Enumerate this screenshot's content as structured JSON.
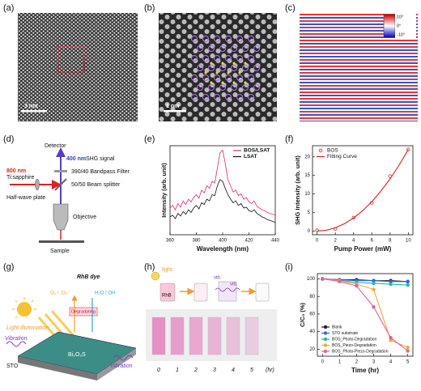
{
  "panel_labels": [
    "(a)",
    "(b)",
    "(c)",
    "(d)",
    "(e)",
    "(f)",
    "(g)",
    "(h)",
    "(i)"
  ],
  "images": {
    "a_scale": "3 nm",
    "b_scale": "1 nm",
    "c_colorbar": [
      "10°",
      "0°",
      "-10°"
    ]
  },
  "setup": {
    "detector": "Detector",
    "signal_wavelength": "400 nm",
    "signal": "SHG signal",
    "laser_wavelength": "800 nm",
    "laser": "Ti:sapphire",
    "filter": "390/40 Bandpass Filter",
    "splitter": "50/50 Beam splitter",
    "waveplate": "Half-wave plate",
    "objective": "Objective",
    "sample": "Sample"
  },
  "scheme": {
    "dye": "RhB dye",
    "light": "Light illumination",
    "reduction": "O₂ / ·O₂⁻",
    "oxidation": "H₂O / OH⁻",
    "degrading": "Degradating",
    "vibration_left": "Vibration",
    "vibration_right": "Vibration",
    "substrate": "STO",
    "film": "Bi₂O₂S"
  },
  "process": {
    "light": "light",
    "sample": "RhB",
    "vib_1": "vib.",
    "vib_2": "vib.",
    "times": [
      "0",
      "1",
      "2",
      "3",
      "4",
      "5"
    ],
    "unit": "(hr)"
  },
  "chart_data": [
    {
      "type": "line",
      "mode": "lines",
      "xlabel": "Wavelength (nm)",
      "ylabel": "Intensity (arb. unit)",
      "legend": "upper right",
      "x": [
        360,
        362,
        364,
        366,
        368,
        370,
        372,
        374,
        376,
        378,
        380,
        382,
        384,
        386,
        388,
        390,
        392,
        394,
        396,
        398,
        400,
        402,
        404,
        406,
        408,
        410,
        412,
        414,
        416,
        418,
        420,
        422,
        424,
        426,
        428,
        430,
        432,
        434,
        436,
        438,
        440
      ],
      "xlim": [
        360,
        440
      ],
      "xticks": [
        360,
        380,
        400,
        420,
        440
      ],
      "ylim": [
        0,
        1
      ],
      "series": [
        {
          "name": "BOS/LSAT",
          "color": "#e0287a",
          "values": [
            0.3,
            0.33,
            0.28,
            0.35,
            0.31,
            0.38,
            0.34,
            0.4,
            0.37,
            0.42,
            0.45,
            0.41,
            0.5,
            0.47,
            0.55,
            0.52,
            0.6,
            0.58,
            0.75,
            0.92,
            0.95,
            0.8,
            0.62,
            0.55,
            0.48,
            0.5,
            0.44,
            0.46,
            0.4,
            0.42,
            0.37,
            0.35,
            0.38,
            0.32,
            0.3,
            0.28,
            0.27,
            0.25,
            0.24,
            0.23,
            0.22
          ]
        },
        {
          "name": "LSAT",
          "color": "#111111",
          "values": [
            0.2,
            0.22,
            0.18,
            0.24,
            0.21,
            0.26,
            0.23,
            0.28,
            0.25,
            0.3,
            0.33,
            0.29,
            0.36,
            0.34,
            0.4,
            0.38,
            0.45,
            0.44,
            0.55,
            0.62,
            0.6,
            0.52,
            0.45,
            0.4,
            0.36,
            0.38,
            0.33,
            0.35,
            0.3,
            0.31,
            0.27,
            0.26,
            0.28,
            0.24,
            0.22,
            0.2,
            0.19,
            0.17,
            0.16,
            0.15,
            0.14
          ]
        }
      ]
    },
    {
      "type": "line",
      "xlabel": "Pump Power (mW)",
      "ylabel": "SHG Intensity (arb. unit)",
      "legend": "upper left",
      "xlim": [
        -0.5,
        10.5
      ],
      "xticks": [
        0,
        2,
        4,
        6,
        8,
        10
      ],
      "ylim": [
        -1,
        23
      ],
      "yticks": [
        0,
        5,
        10,
        15,
        20
      ],
      "series": [
        {
          "name": "BOS",
          "color": "#d62728",
          "mode": "markers",
          "x": [
            0,
            2,
            4,
            6,
            8,
            10
          ],
          "values": [
            0.2,
            0.6,
            3.6,
            7.6,
            14.8,
            22
          ]
        },
        {
          "name": "Fitting Curve",
          "color": "#e0201e",
          "mode": "lines",
          "x": [
            0,
            1,
            2,
            3,
            4,
            5,
            6,
            7,
            8,
            9,
            10
          ],
          "values": [
            0,
            0.22,
            0.88,
            1.98,
            3.52,
            5.5,
            7.92,
            10.78,
            14.08,
            17.82,
            22
          ]
        }
      ]
    },
    {
      "type": "line",
      "mode": "lines+markers",
      "xlabel": "Time (hr)",
      "ylabel": "C/C₀ (%)",
      "legend": "lower left",
      "x": [
        0,
        1,
        2,
        3,
        4,
        5
      ],
      "xlim": [
        -0.3,
        5.3
      ],
      "xticks": [
        0,
        1,
        2,
        3,
        4,
        5
      ],
      "ylim": [
        12,
        106
      ],
      "yticks": [
        20,
        40,
        60,
        80,
        100
      ],
      "series": [
        {
          "name": "Blank",
          "color": "#222222",
          "values": [
            100,
            99,
            99,
            98,
            98,
            97
          ]
        },
        {
          "name": "STO substrate",
          "color": "#2f6bd8",
          "values": [
            100,
            99,
            98,
            98,
            97,
            97
          ]
        },
        {
          "name": "BOS_Photo-Degradation",
          "color": "#2ab5a8",
          "values": [
            100,
            98,
            96,
            95,
            94,
            93
          ]
        },
        {
          "name": "BOS_Piezo-Degradation",
          "color": "#f2a93b",
          "values": [
            100,
            98,
            94,
            88,
            30,
            22
          ]
        },
        {
          "name": "BOS_Photo-Piezo-Degradation",
          "color": "#e5609a",
          "values": [
            100,
            97,
            92,
            68,
            33,
            18
          ]
        }
      ]
    }
  ]
}
